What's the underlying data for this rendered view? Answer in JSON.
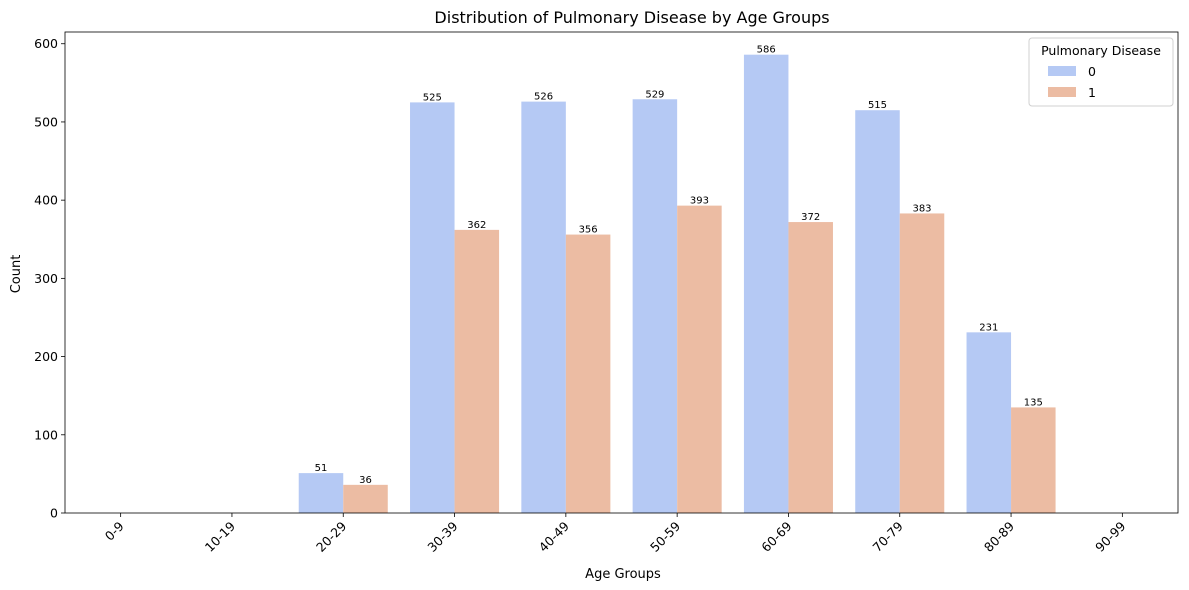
{
  "chart_data": {
    "type": "bar",
    "title": "Distribution of Pulmonary Disease by Age Groups",
    "xlabel": "Age Groups",
    "ylabel": "Count",
    "ylim": [
      0,
      615
    ],
    "yticks": [
      0,
      100,
      200,
      300,
      400,
      500,
      600
    ],
    "categories": [
      "0-9",
      "10-19",
      "20-29",
      "30-39",
      "40-49",
      "50-59",
      "60-69",
      "70-79",
      "80-89",
      "90-99"
    ],
    "series": [
      {
        "name": "0",
        "color": "#b5c9f4",
        "values": [
          0,
          0,
          51,
          525,
          526,
          529,
          586,
          515,
          231,
          0
        ]
      },
      {
        "name": "1",
        "color": "#ecbca3",
        "values": [
          0,
          0,
          36,
          362,
          356,
          393,
          372,
          383,
          135,
          0
        ]
      }
    ],
    "bar_labels": [
      [
        null,
        null,
        "51",
        "525",
        "526",
        "529",
        "586",
        "515",
        "231",
        null
      ],
      [
        null,
        null,
        "36",
        "362",
        "356",
        "393",
        "372",
        "383",
        "135",
        null
      ]
    ],
    "legend": {
      "title": "Pulmonary Disease",
      "position": "top-right"
    },
    "grid": false,
    "xtick_rotation": 45
  }
}
